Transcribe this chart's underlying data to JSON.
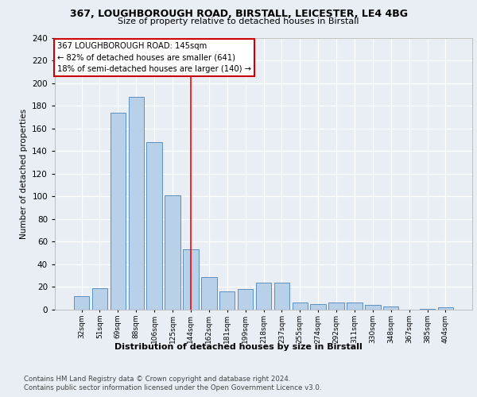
{
  "title1": "367, LOUGHBOROUGH ROAD, BIRSTALL, LEICESTER, LE4 4BG",
  "title2": "Size of property relative to detached houses in Birstall",
  "xlabel": "Distribution of detached houses by size in Birstall",
  "ylabel": "Number of detached properties",
  "categories": [
    "32sqm",
    "51sqm",
    "69sqm",
    "88sqm",
    "106sqm",
    "125sqm",
    "144sqm",
    "162sqm",
    "181sqm",
    "199sqm",
    "218sqm",
    "237sqm",
    "255sqm",
    "274sqm",
    "292sqm",
    "311sqm",
    "330sqm",
    "348sqm",
    "367sqm",
    "385sqm",
    "404sqm"
  ],
  "values": [
    12,
    19,
    174,
    188,
    148,
    101,
    53,
    29,
    16,
    18,
    24,
    24,
    6,
    5,
    6,
    6,
    4,
    3,
    0,
    1,
    2
  ],
  "bar_color": "#b8d0e8",
  "bar_edge_color": "#5a90c0",
  "reference_line_x": 6,
  "annotation_line1": "367 LOUGHBOROUGH ROAD: 145sqm",
  "annotation_line2": "← 82% of detached houses are smaller (641)",
  "annotation_line3": "18% of semi-detached houses are larger (140) →",
  "ylim": [
    0,
    240
  ],
  "yticks": [
    0,
    20,
    40,
    60,
    80,
    100,
    120,
    140,
    160,
    180,
    200,
    220,
    240
  ],
  "footer1": "Contains HM Land Registry data © Crown copyright and database right 2024.",
  "footer2": "Contains public sector information licensed under the Open Government Licence v3.0.",
  "bg_color": "#e8eef4",
  "plot_bg_color": "#e8eef4"
}
